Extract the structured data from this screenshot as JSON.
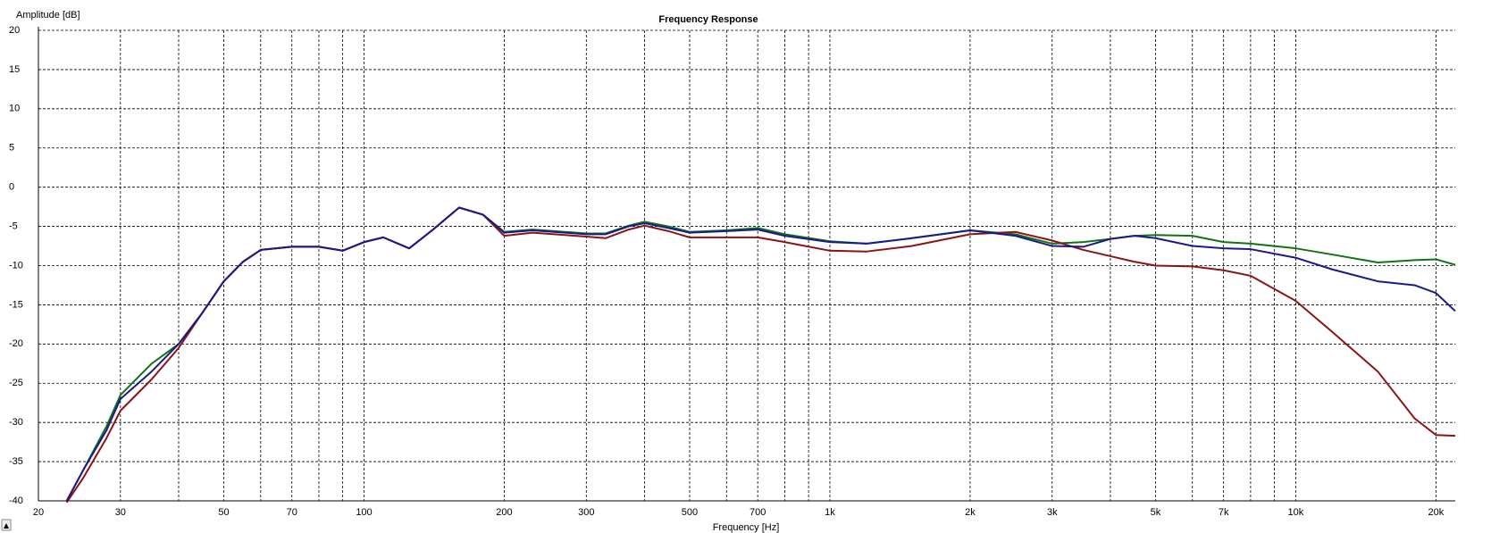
{
  "chart_data": {
    "type": "line",
    "title": "Frequency Response",
    "ylabel": "Amplitude [dB]",
    "xlabel": "Frequency [Hz]",
    "xscale": "log",
    "grid": true,
    "xlim": [
      20,
      22000
    ],
    "ylim": [
      -40,
      20
    ],
    "yticks": [
      20,
      15,
      10,
      5,
      0,
      -5,
      -10,
      -15,
      -20,
      -25,
      -30,
      -35,
      -40
    ],
    "xticks": [
      20,
      30,
      50,
      70,
      100,
      200,
      300,
      500,
      700,
      {
        "value": 1000,
        "label": "1k"
      },
      {
        "value": 2000,
        "label": "2k"
      },
      {
        "value": 3000,
        "label": "3k"
      },
      {
        "value": 5000,
        "label": "5k"
      },
      {
        "value": 7000,
        "label": "7k"
      },
      {
        "value": 10000,
        "label": "10k"
      },
      {
        "value": 20000,
        "label": "20k"
      }
    ],
    "xminorticks": [
      40,
      60,
      80,
      90,
      400,
      600,
      800,
      900,
      4000,
      6000,
      8000,
      9000
    ],
    "x": [
      23,
      25,
      28,
      30,
      35,
      40,
      45,
      50,
      55,
      60,
      70,
      80,
      90,
      100,
      110,
      125,
      140,
      160,
      180,
      200,
      230,
      270,
      300,
      330,
      370,
      400,
      450,
      500,
      600,
      700,
      800,
      1000,
      1200,
      1500,
      2000,
      2500,
      3000,
      3500,
      4000,
      4500,
      5000,
      6000,
      7000,
      8000,
      10000,
      12000,
      15000,
      18000,
      20000,
      22000
    ],
    "series": [
      {
        "color": "#137313",
        "values": [
          -40,
          -36,
          -30.5,
          -26.5,
          -22.5,
          -20,
          -16,
          -12,
          -9.5,
          -8,
          -7.6,
          -7.6,
          -8.1,
          -7,
          -6.4,
          -7.8,
          -5.5,
          -2.6,
          -3.5,
          -5.7,
          -5.4,
          -5.7,
          -5.9,
          -5.9,
          -4.9,
          -4.4,
          -5,
          -5.7,
          -5.5,
          -5.2,
          -6,
          -6.9,
          -7.2,
          -6.5,
          -5.5,
          -6,
          -7.2,
          -7,
          -6.6,
          -6.2,
          -6.1,
          -6.2,
          -7,
          -7.2,
          -7.8,
          -8.6,
          -9.6,
          -9.3,
          -9.2,
          -9.9
        ]
      },
      {
        "color": "#8b1414",
        "values": [
          -40.2,
          -37,
          -32,
          -28.5,
          -24.5,
          -20.5,
          -16,
          -12,
          -9.5,
          -8,
          -7.6,
          -7.6,
          -8.1,
          -7,
          -6.4,
          -7.8,
          -5.5,
          -2.6,
          -3.5,
          -6.2,
          -5.8,
          -6.1,
          -6.3,
          -6.5,
          -5.4,
          -4.9,
          -5.6,
          -6.4,
          -6.4,
          -6.4,
          -7,
          -8.1,
          -8.2,
          -7.5,
          -6,
          -5.7,
          -6.8,
          -8,
          -8.8,
          -9.5,
          -10,
          -10.1,
          -10.6,
          -11.3,
          -14.5,
          -18.5,
          -23.5,
          -29.5,
          -31.6,
          -31.7
        ]
      },
      {
        "color": "#1a1a8c",
        "values": [
          -40,
          -36,
          -31,
          -27,
          -23.5,
          -20,
          -16,
          -12,
          -9.5,
          -8,
          -7.6,
          -7.6,
          -8.1,
          -7,
          -6.4,
          -7.8,
          -5.5,
          -2.6,
          -3.5,
          -5.8,
          -5.5,
          -5.8,
          -6,
          -6,
          -5,
          -4.6,
          -5.2,
          -5.8,
          -5.6,
          -5.4,
          -6.2,
          -7,
          -7.2,
          -6.5,
          -5.5,
          -6.2,
          -7.5,
          -7.6,
          -6.6,
          -6.2,
          -6.5,
          -7.5,
          -7.8,
          -7.9,
          -9,
          -10.5,
          -12,
          -12.5,
          -13.5,
          -15.8
        ]
      }
    ]
  }
}
